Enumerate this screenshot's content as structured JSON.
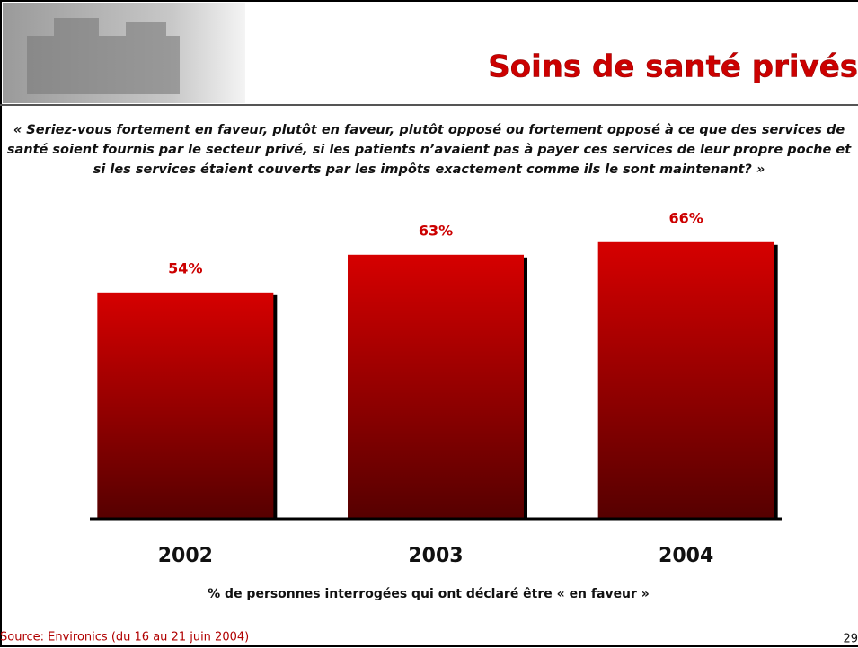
{
  "header": {
    "title": "Soins de santé privés"
  },
  "question": "« Seriez-vous fortement en faveur, plutôt en faveur, plutôt opposé ou fortement opposé à ce que des services de santé soient fournis par le secteur privé, si les patients n’avaient pas à payer ces services de leur propre poche et si les services étaient couverts par les impôts exactement comme ils le sont maintenant? »",
  "chart_data": {
    "type": "bar",
    "categories": [
      "2002",
      "2003",
      "2004"
    ],
    "values": [
      54,
      63,
      66
    ],
    "value_labels": [
      "54%",
      "63%",
      "66%"
    ],
    "color": "#cc0000",
    "x_label": "% de personnes interrogées qui ont déclaré être « en faveur »"
  },
  "footer": {
    "source": "Source: Environics (du 16 au 21 juin 2004)",
    "page": "29"
  }
}
